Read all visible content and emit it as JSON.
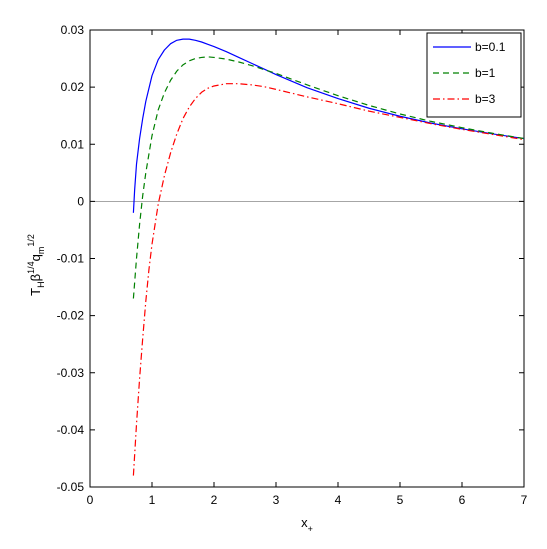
{
  "chart_data": {
    "type": "line",
    "title": "",
    "xlabel": "x",
    "xlabel_sub": "+",
    "ylabel_parts": {
      "t": "T",
      "t_sub": "H",
      "beta": "β",
      "beta_sup": "1/4",
      "q": "q",
      "q_sub": "m",
      "q_sup": "1/2"
    },
    "xlim": [
      0,
      7
    ],
    "ylim": [
      -0.05,
      0.03
    ],
    "xticks": [
      0,
      1,
      2,
      3,
      4,
      5,
      6,
      7
    ],
    "xtick_labels": [
      "0",
      "1",
      "2",
      "3",
      "4",
      "5",
      "6",
      "7"
    ],
    "yticks": [
      -0.05,
      -0.04,
      -0.03,
      -0.02,
      -0.01,
      0,
      0.01,
      0.02,
      0.03
    ],
    "ytick_labels": [
      "-0.05",
      "-0.04",
      "-0.03",
      "-0.02",
      "-0.01",
      "0",
      "0.01",
      "0.02",
      "0.03"
    ],
    "grid": false,
    "legend_position": "top-right",
    "reference_line": {
      "y": 0,
      "color": "#888888"
    },
    "series": [
      {
        "name": "b=0.1",
        "color": "#0000ff",
        "dash": "solid",
        "x": [
          0.7,
          0.72,
          0.75,
          0.8,
          0.85,
          0.9,
          1.0,
          1.1,
          1.2,
          1.3,
          1.4,
          1.5,
          1.6,
          1.7,
          1.8,
          1.9,
          2.0,
          2.2,
          2.4,
          2.6,
          2.8,
          3.0,
          3.5,
          4.0,
          4.5,
          5.0,
          5.5,
          6.0,
          6.5,
          7.0
        ],
        "y": [
          -0.002,
          0.002,
          0.0065,
          0.011,
          0.0145,
          0.0175,
          0.022,
          0.0248,
          0.0265,
          0.0276,
          0.0282,
          0.0284,
          0.0284,
          0.0282,
          0.0279,
          0.0275,
          0.0271,
          0.0262,
          0.0252,
          0.0242,
          0.0232,
          0.0222,
          0.0199,
          0.018,
          0.0163,
          0.0149,
          0.0137,
          0.0127,
          0.0118,
          0.011
        ]
      },
      {
        "name": "b=1",
        "color": "#008000",
        "dash": "dashed",
        "x": [
          0.7,
          0.75,
          0.8,
          0.85,
          0.9,
          1.0,
          1.1,
          1.2,
          1.3,
          1.4,
          1.5,
          1.6,
          1.7,
          1.8,
          1.9,
          2.0,
          2.2,
          2.4,
          2.6,
          2.8,
          3.0,
          3.5,
          4.0,
          4.5,
          5.0,
          5.5,
          6.0,
          6.5,
          7.0
        ],
        "y": [
          -0.017,
          -0.01,
          -0.004,
          0.001,
          0.005,
          0.0115,
          0.016,
          0.019,
          0.0212,
          0.0228,
          0.0239,
          0.0246,
          0.025,
          0.0252,
          0.0253,
          0.0252,
          0.0249,
          0.0244,
          0.0238,
          0.0231,
          0.0224,
          0.0204,
          0.0185,
          0.0168,
          0.0153,
          0.014,
          0.0129,
          0.0119,
          0.011
        ]
      },
      {
        "name": "b=3",
        "color": "#ff0000",
        "dash": "dashdot",
        "x": [
          0.7,
          0.75,
          0.8,
          0.85,
          0.9,
          0.95,
          1.0,
          1.1,
          1.2,
          1.3,
          1.4,
          1.5,
          1.6,
          1.7,
          1.8,
          1.9,
          2.0,
          2.2,
          2.4,
          2.6,
          2.8,
          3.0,
          3.5,
          4.0,
          4.5,
          5.0,
          5.5,
          6.0,
          6.5,
          7.0
        ],
        "y": [
          -0.048,
          -0.039,
          -0.031,
          -0.024,
          -0.0175,
          -0.012,
          -0.0075,
          -0.0005,
          0.0045,
          0.0085,
          0.0118,
          0.0145,
          0.0165,
          0.018,
          0.0191,
          0.0198,
          0.0202,
          0.0206,
          0.0206,
          0.0204,
          0.0201,
          0.0196,
          0.0183,
          0.0171,
          0.0158,
          0.0147,
          0.0136,
          0.0126,
          0.0117,
          0.0108
        ]
      }
    ]
  }
}
